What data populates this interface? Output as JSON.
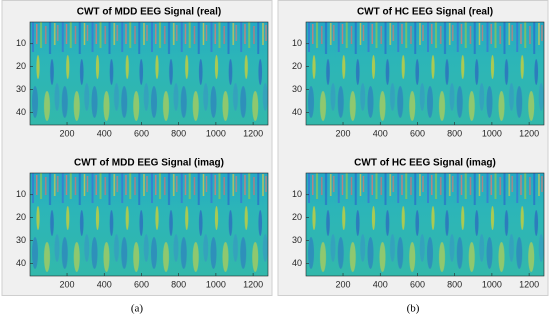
{
  "chart_data": [
    {
      "type": "heatmap",
      "title": "CWT of MDD EEG Signal (real)",
      "xlim": [
        1,
        1280
      ],
      "ylim": [
        0.5,
        45.5
      ],
      "y_reversed": true,
      "xticks": [
        200,
        400,
        600,
        800,
        1000,
        1200
      ],
      "yticks": [
        10,
        20,
        30,
        40
      ]
    },
    {
      "type": "heatmap",
      "title": "CWT of MDD EEG Signal (imag)",
      "xlim": [
        1,
        1280
      ],
      "ylim": [
        0.5,
        45.5
      ],
      "y_reversed": true,
      "xticks": [
        200,
        400,
        600,
        800,
        1000,
        1200
      ],
      "yticks": [
        10,
        20,
        30,
        40
      ]
    },
    {
      "type": "heatmap",
      "title": "CWT of HC EEG Signal (real)",
      "xlim": [
        1,
        1280
      ],
      "ylim": [
        0.5,
        45.5
      ],
      "y_reversed": true,
      "xticks": [
        200,
        400,
        600,
        800,
        1000,
        1200
      ],
      "yticks": [
        10,
        20,
        30,
        40
      ]
    },
    {
      "type": "heatmap",
      "title": "CWT of HC EEG Signal (imag)",
      "xlim": [
        1,
        1280
      ],
      "ylim": [
        0.5,
        45.5
      ],
      "y_reversed": true,
      "xticks": [
        200,
        400,
        600,
        800,
        1000,
        1200
      ],
      "yticks": [
        10,
        20,
        30,
        40
      ]
    }
  ],
  "panel_labels": [
    "(a)",
    "(b)"
  ]
}
